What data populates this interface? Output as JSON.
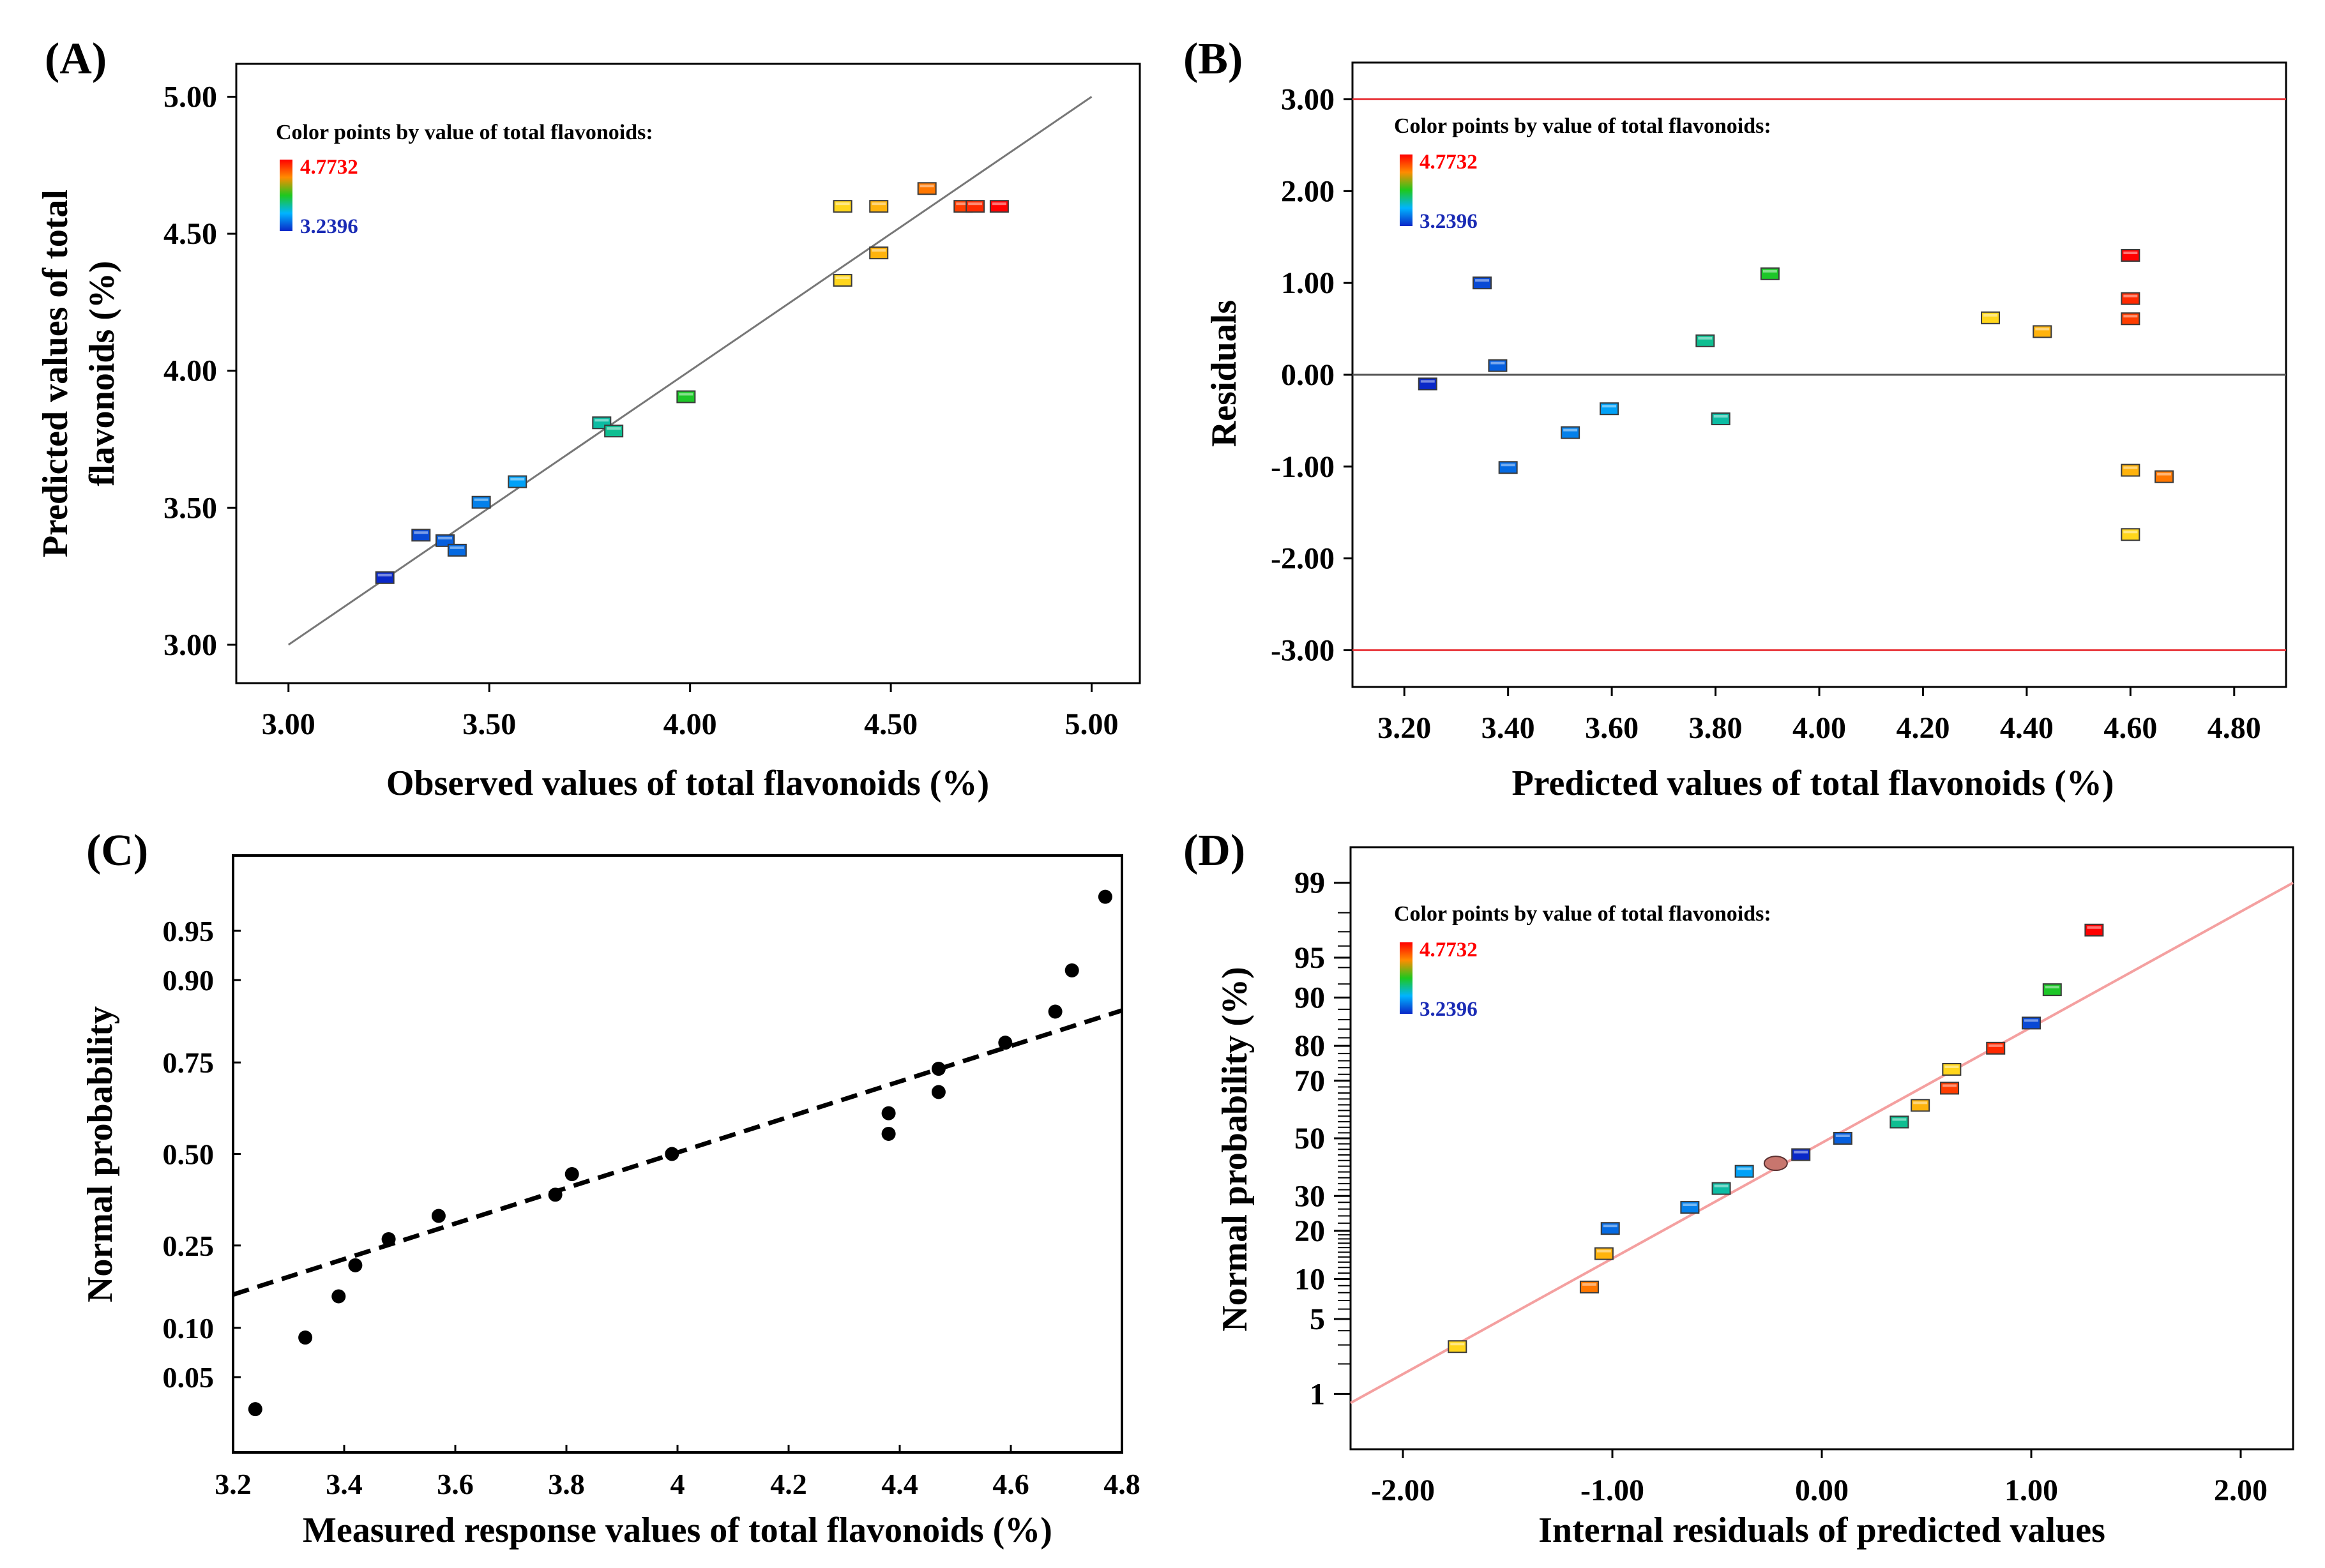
{
  "chart_data": [
    {
      "id": "A",
      "panel_label": "(A)",
      "type": "scatter",
      "xlabel": "Observed values of total flavonoids (%)",
      "ylabel_lines": [
        "Predicted values of total",
        "flavonoids (%)"
      ],
      "xlim": [
        2.87,
        5.12
      ],
      "ylim": [
        2.86,
        5.12
      ],
      "xticks": [
        3.0,
        3.5,
        4.0,
        4.5,
        5.0
      ],
      "xtick_labels": [
        "3.00",
        "3.50",
        "4.00",
        "4.50",
        "5.00"
      ],
      "yticks": [
        3.0,
        3.5,
        4.0,
        4.5,
        5.0
      ],
      "ytick_labels": [
        "3.00",
        "3.50",
        "4.00",
        "4.50",
        "5.00"
      ],
      "reference_line": {
        "from": [
          3.0,
          3.0
        ],
        "to": [
          5.0,
          5.0
        ],
        "color": "#777777"
      },
      "legend": {
        "title": "Color points by value of  total flavonoids:",
        "max_label": "4.7732",
        "min_label": "3.2396",
        "min_value": 3.2396,
        "max_value": 4.7732
      },
      "points": [
        {
          "x": 3.24,
          "y": 3.245,
          "v": 3.2396
        },
        {
          "x": 3.33,
          "y": 3.4,
          "v": 3.33
        },
        {
          "x": 3.39,
          "y": 3.38,
          "v": 3.39
        },
        {
          "x": 3.42,
          "y": 3.345,
          "v": 3.42
        },
        {
          "x": 3.48,
          "y": 3.52,
          "v": 3.48
        },
        {
          "x": 3.57,
          "y": 3.595,
          "v": 3.57
        },
        {
          "x": 3.78,
          "y": 3.81,
          "v": 3.78
        },
        {
          "x": 3.81,
          "y": 3.78,
          "v": 3.81
        },
        {
          "x": 3.99,
          "y": 3.905,
          "v": 3.99
        },
        {
          "x": 4.38,
          "y": 4.6,
          "v": 4.38
        },
        {
          "x": 4.38,
          "y": 4.33,
          "v": 4.38
        },
        {
          "x": 4.47,
          "y": 4.6,
          "v": 4.47
        },
        {
          "x": 4.47,
          "y": 4.43,
          "v": 4.47
        },
        {
          "x": 4.59,
          "y": 4.665,
          "v": 4.59
        },
        {
          "x": 4.68,
          "y": 4.6,
          "v": 4.68
        },
        {
          "x": 4.71,
          "y": 4.6,
          "v": 4.71
        },
        {
          "x": 4.77,
          "y": 4.6,
          "v": 4.7732
        }
      ]
    },
    {
      "id": "B",
      "panel_label": "(B)",
      "type": "scatter",
      "xlabel": "Predicted values of total flavonoids (%)",
      "ylabel": "Residuals",
      "xlim": [
        3.1,
        4.9
      ],
      "ylim": [
        -3.4,
        3.4
      ],
      "xticks": [
        3.2,
        3.4,
        3.6,
        3.8,
        4.0,
        4.2,
        4.4,
        4.6,
        4.8
      ],
      "xtick_labels": [
        "3.20",
        "3.40",
        "3.60",
        "3.80",
        "4.00",
        "4.20",
        "4.40",
        "4.60",
        "4.80"
      ],
      "yticks": [
        -3,
        -2,
        -1,
        0,
        1,
        2,
        3
      ],
      "ytick_labels": [
        "-3.00",
        "-2.00",
        "-1.00",
        "0.00",
        "1.00",
        "2.00",
        "3.00"
      ],
      "limit_lines": [
        3.0,
        -3.0
      ],
      "limit_color": "#e8383d",
      "zero_line": 0,
      "legend": {
        "title": "Color points by value of  total flavonoids:",
        "max_label": "4.7732",
        "min_label": "3.2396",
        "min_value": 3.2396,
        "max_value": 4.7732
      },
      "points": [
        {
          "x": 3.245,
          "y": -0.1,
          "v": 3.2396
        },
        {
          "x": 3.35,
          "y": 1.0,
          "v": 3.33
        },
        {
          "x": 3.38,
          "y": 0.1,
          "v": 3.39
        },
        {
          "x": 3.4,
          "y": -1.01,
          "v": 3.42
        },
        {
          "x": 3.52,
          "y": -0.63,
          "v": 3.48
        },
        {
          "x": 3.595,
          "y": -0.37,
          "v": 3.57
        },
        {
          "x": 3.78,
          "y": 0.37,
          "v": 3.81
        },
        {
          "x": 3.81,
          "y": -0.48,
          "v": 3.78
        },
        {
          "x": 3.905,
          "y": 1.1,
          "v": 3.99
        },
        {
          "x": 4.33,
          "y": 0.62,
          "v": 4.38
        },
        {
          "x": 4.43,
          "y": 0.47,
          "v": 4.47
        },
        {
          "x": 4.6,
          "y": 1.3,
          "v": 4.7732
        },
        {
          "x": 4.6,
          "y": 0.83,
          "v": 4.71
        },
        {
          "x": 4.6,
          "y": 0.61,
          "v": 4.68
        },
        {
          "x": 4.6,
          "y": -1.04,
          "v": 4.47
        },
        {
          "x": 4.6,
          "y": -1.74,
          "v": 4.38
        },
        {
          "x": 4.665,
          "y": -1.11,
          "v": 4.59
        }
      ]
    },
    {
      "id": "C",
      "panel_label": "(C)",
      "type": "scatter",
      "xlabel": "Measured response values of total flavonoids (%)",
      "ylabel": "Normal probability",
      "xlim": [
        3.2,
        4.8
      ],
      "xticks": [
        3.2,
        3.4,
        3.6,
        3.8,
        4.0,
        4.2,
        4.4,
        4.6,
        4.8
      ],
      "xtick_labels": [
        "3.2",
        "3.4",
        "3.6",
        "3.8",
        "4",
        "4.2",
        "4.4",
        "4.6",
        "4.8"
      ],
      "ylim_probit": [
        -2.2,
        2.2
      ],
      "yticks": [
        0.05,
        0.1,
        0.25,
        0.5,
        0.75,
        0.9,
        0.95
      ],
      "ytick_labels": [
        "0.05",
        "0.10",
        "0.25",
        "0.50",
        "0.75",
        "0.90",
        "0.95"
      ],
      "fit_line": {
        "from": [
          3.2,
          0.15
        ],
        "to": [
          4.8,
          0.855
        ],
        "style": "dashed"
      },
      "points": [
        {
          "x": 3.24,
          "y": 0.03
        },
        {
          "x": 3.33,
          "y": 0.088
        },
        {
          "x": 3.39,
          "y": 0.147
        },
        {
          "x": 3.42,
          "y": 0.206
        },
        {
          "x": 3.48,
          "y": 0.265
        },
        {
          "x": 3.57,
          "y": 0.324
        },
        {
          "x": 3.78,
          "y": 0.382
        },
        {
          "x": 3.81,
          "y": 0.441
        },
        {
          "x": 3.99,
          "y": 0.5
        },
        {
          "x": 4.38,
          "y": 0.559
        },
        {
          "x": 4.38,
          "y": 0.618
        },
        {
          "x": 4.47,
          "y": 0.676
        },
        {
          "x": 4.47,
          "y": 0.735
        },
        {
          "x": 4.59,
          "y": 0.794
        },
        {
          "x": 4.68,
          "y": 0.853
        },
        {
          "x": 4.71,
          "y": 0.912
        },
        {
          "x": 4.77,
          "y": 0.971
        }
      ]
    },
    {
      "id": "D",
      "panel_label": "(D)",
      "type": "scatter",
      "xlabel": "Internal residuals of predicted values",
      "ylabel": "Normal probability (%)",
      "xlim": [
        -2.25,
        2.25
      ],
      "xticks": [
        -2,
        -1,
        0,
        1,
        2
      ],
      "xtick_labels": [
        "-2.00",
        "-1.00",
        "0.00",
        "1.00",
        "2.00"
      ],
      "ylim_probit": [
        -2.83,
        2.65
      ],
      "yticks": [
        1,
        5,
        10,
        20,
        30,
        50,
        70,
        80,
        90,
        95,
        99
      ],
      "ytick_labels": [
        "1",
        "5",
        "10",
        "20",
        "30",
        "50",
        "70",
        "80",
        "90",
        "95",
        "99"
      ],
      "minor_yticks": [
        2,
        3,
        4,
        6,
        7,
        8,
        9,
        11,
        12,
        13,
        14,
        15,
        16,
        17,
        18,
        19,
        22,
        24,
        26,
        28,
        32,
        34,
        36,
        38,
        40,
        42,
        44,
        46,
        48,
        52,
        54,
        56,
        58,
        60,
        62,
        64,
        66,
        68,
        72,
        74,
        76,
        78,
        82,
        84,
        86,
        88,
        92,
        94,
        96,
        97,
        98
      ],
      "fit_line": {
        "from": [
          -2.25,
          0.8
        ],
        "to": [
          2.25,
          99.0
        ],
        "color": "#f4a0a0"
      },
      "legend": {
        "title": "Color points by value of  total flavonoids:",
        "max_label": "4.7732",
        "min_label": "3.2396",
        "min_value": 3.2396,
        "max_value": 4.7732
      },
      "points": [
        {
          "x": -1.74,
          "y": 2.9,
          "v": 4.38,
          "shape": "rect"
        },
        {
          "x": -1.11,
          "y": 8.8,
          "v": 4.59,
          "shape": "rect"
        },
        {
          "x": -1.04,
          "y": 14.7,
          "v": 4.47,
          "shape": "rect"
        },
        {
          "x": -1.01,
          "y": 20.6,
          "v": 3.42,
          "shape": "rect"
        },
        {
          "x": -0.63,
          "y": 26.5,
          "v": 3.48,
          "shape": "rect"
        },
        {
          "x": -0.48,
          "y": 32.4,
          "v": 3.78,
          "shape": "rect"
        },
        {
          "x": -0.37,
          "y": 38.2,
          "v": 3.57,
          "shape": "rect"
        },
        {
          "x": -0.22,
          "y": 41.0,
          "v": 4.6,
          "shape": "ellipse",
          "color": "#c8766e"
        },
        {
          "x": -0.1,
          "y": 44.1,
          "v": 3.2396,
          "shape": "rect"
        },
        {
          "x": 0.1,
          "y": 50.0,
          "v": 3.39,
          "shape": "rect"
        },
        {
          "x": 0.37,
          "y": 55.9,
          "v": 3.81,
          "shape": "rect"
        },
        {
          "x": 0.47,
          "y": 61.8,
          "v": 4.47,
          "shape": "rect"
        },
        {
          "x": 0.61,
          "y": 67.6,
          "v": 4.68,
          "shape": "rect"
        },
        {
          "x": 0.62,
          "y": 73.5,
          "v": 4.38,
          "shape": "rect"
        },
        {
          "x": 0.83,
          "y": 79.4,
          "v": 4.71,
          "shape": "rect"
        },
        {
          "x": 1.0,
          "y": 85.3,
          "v": 3.33,
          "shape": "rect"
        },
        {
          "x": 1.1,
          "y": 91.2,
          "v": 3.99,
          "shape": "rect"
        },
        {
          "x": 1.3,
          "y": 97.1,
          "v": 4.7732,
          "shape": "rect"
        }
      ]
    }
  ]
}
